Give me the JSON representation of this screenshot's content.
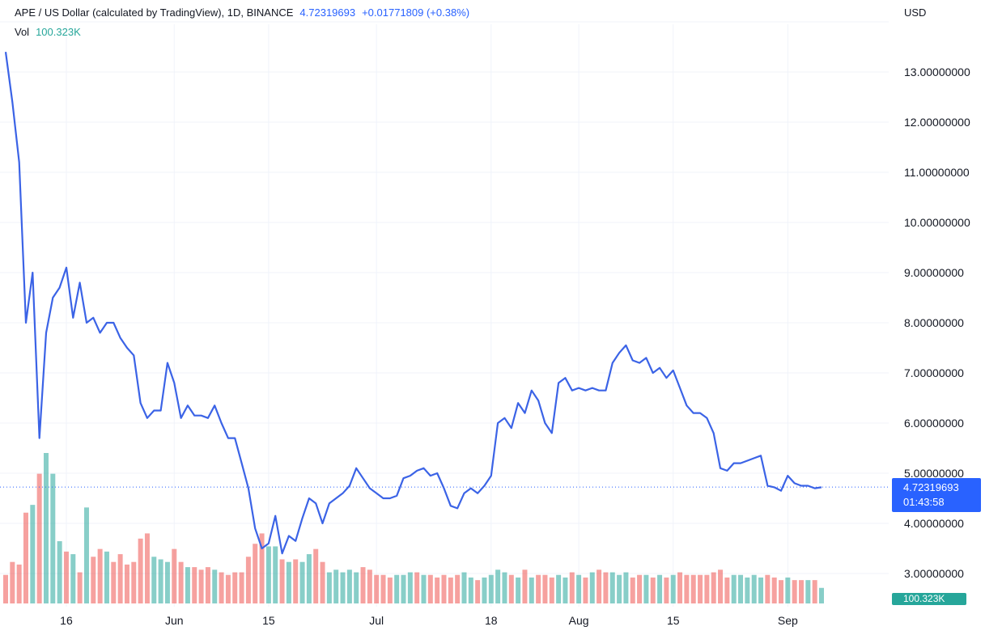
{
  "legend": {
    "symbol": "APE / US Dollar (calculated by TradingView), 1D, BINANCE",
    "price": "4.72319693",
    "change": "+0.01771809 (+0.38%)",
    "vol_label": "Vol",
    "vol_value": "100.323K"
  },
  "currency": "USD",
  "price_badge": {
    "price": "4.72319693",
    "countdown": "01:43:58"
  },
  "vol_badge": "100.323K",
  "colors": {
    "line": "#3b63e6",
    "grid": "#f0f3fa",
    "axis_text": "#131722",
    "vol_up": "#26a69a",
    "vol_down": "#ef5350",
    "price_line": "#2962ff"
  },
  "chart_data": {
    "type": "line",
    "title": "APE / US Dollar (calculated by TradingView), 1D, BINANCE",
    "xlabel": "",
    "ylabel": "USD",
    "ylim": [
      2.5,
      14.0
    ],
    "y_ticks": [
      3,
      4,
      5,
      6,
      7,
      8,
      9,
      10,
      11,
      12,
      13
    ],
    "y_tick_labels": [
      "3.00000000",
      "4.00000000",
      "5.00000000",
      "6.00000000",
      "7.00000000",
      "8.00000000",
      "9.00000000",
      "10.00000000",
      "11.00000000",
      "12.00000000",
      "13.00000000"
    ],
    "x_ticks": [
      {
        "label": "16",
        "index": 9
      },
      {
        "label": "Jun",
        "index": 25
      },
      {
        "label": "15",
        "index": 39
      },
      {
        "label": "Jul",
        "index": 55
      },
      {
        "label": "18",
        "index": 72
      },
      {
        "label": "Aug",
        "index": 85
      },
      {
        "label": "15",
        "index": 99
      },
      {
        "label": "Sep",
        "index": 116
      }
    ],
    "grid": true,
    "last_price": 4.72319693,
    "series": [
      {
        "values": [
          13.4,
          12.4,
          11.2,
          8.0,
          9.0,
          5.7,
          7.8,
          8.5,
          8.7,
          9.1,
          8.1,
          8.8,
          8.0,
          8.1,
          7.8,
          8.0,
          8.0,
          7.7,
          7.5,
          7.35,
          6.4,
          6.1,
          6.25,
          6.25,
          7.2,
          6.8,
          6.1,
          6.35,
          6.15,
          6.15,
          6.1,
          6.35,
          6.0,
          5.7,
          5.7,
          5.2,
          4.7,
          3.9,
          3.5,
          3.6,
          4.15,
          3.4,
          3.75,
          3.65,
          4.1,
          4.5,
          4.4,
          4.0,
          4.4,
          4.5,
          4.6,
          4.75,
          5.1,
          4.9,
          4.7,
          4.6,
          4.5,
          4.5,
          4.55,
          4.9,
          4.95,
          5.05,
          5.1,
          4.95,
          5.0,
          4.7,
          4.35,
          4.3,
          4.6,
          4.7,
          4.6,
          4.75,
          4.95,
          6.0,
          6.1,
          5.9,
          6.4,
          6.2,
          6.65,
          6.45,
          6.0,
          5.8,
          6.8,
          6.9,
          6.65,
          6.7,
          6.65,
          6.7,
          6.65,
          6.65,
          7.2,
          7.4,
          7.55,
          7.25,
          7.2,
          7.3,
          7.0,
          7.1,
          6.9,
          7.05,
          6.7,
          6.35,
          6.2,
          6.2,
          6.1,
          5.8,
          5.1,
          5.05,
          5.2,
          5.2,
          5.25,
          5.3,
          5.35,
          4.75,
          4.72,
          4.65,
          4.95,
          4.8,
          4.75,
          4.75,
          4.7,
          4.72
        ]
      }
    ],
    "volume": {
      "values": [
        11,
        16,
        15,
        35,
        38,
        50,
        58,
        50,
        24,
        20,
        19,
        12,
        37,
        18,
        21,
        20,
        16,
        19,
        15,
        16,
        25,
        27,
        18,
        17,
        16,
        21,
        16,
        14,
        14,
        13,
        14,
        13,
        12,
        11,
        12,
        12,
        18,
        23,
        27,
        22,
        22,
        17,
        16,
        17,
        16,
        19,
        21,
        16,
        12,
        13,
        12,
        13,
        12,
        14,
        13,
        11,
        11,
        10,
        11,
        11,
        12,
        12,
        11,
        11,
        10,
        11,
        10,
        11,
        12,
        10,
        9,
        10,
        11,
        13,
        12,
        11,
        10,
        13,
        10,
        11,
        11,
        10,
        11,
        10,
        12,
        11,
        10,
        12,
        13,
        12,
        12,
        11,
        12,
        10,
        11,
        11,
        10,
        11,
        10,
        11,
        12,
        11,
        11,
        11,
        11,
        12,
        13,
        10,
        11,
        11,
        10,
        11,
        10,
        11,
        10,
        9,
        10,
        9,
        9,
        9,
        9,
        6
      ],
      "up": [
        false,
        false,
        false,
        false,
        true,
        false,
        true,
        true,
        true,
        false,
        true,
        false,
        true,
        false,
        false,
        true,
        false,
        false,
        false,
        false,
        false,
        false,
        true,
        true,
        true,
        false,
        false,
        true,
        false,
        false,
        false,
        true,
        false,
        false,
        false,
        false,
        false,
        false,
        false,
        true,
        true,
        false,
        true,
        false,
        true,
        true,
        false,
        false,
        true,
        true,
        true,
        true,
        true,
        false,
        false,
        false,
        false,
        false,
        true,
        true,
        true,
        false,
        true,
        false,
        false,
        false,
        false,
        false,
        true,
        true,
        false,
        true,
        true,
        true,
        true,
        false,
        true,
        false,
        true,
        false,
        false,
        false,
        true,
        true,
        false,
        true,
        false,
        true,
        false,
        false,
        true,
        true,
        true,
        false,
        false,
        true,
        false,
        true,
        false,
        true,
        false,
        false,
        false,
        false,
        false,
        false,
        false,
        false,
        true,
        true,
        true,
        true,
        true,
        false,
        false,
        false,
        true,
        false,
        false,
        true,
        false,
        true
      ]
    }
  }
}
